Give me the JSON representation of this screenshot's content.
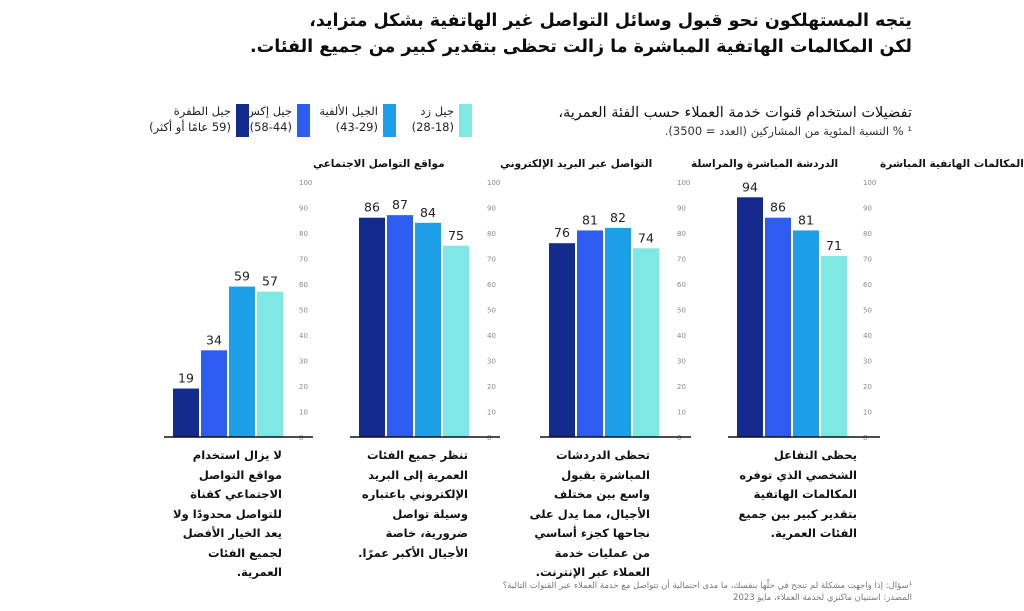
{
  "headline": {
    "line1": "يتجه المستهلكون نحو قبول وسائل التواصل غير الهاتفية بشكل متزايد،",
    "line2": "لكن المكالمات الهاتفية المباشرة ما زالت تحظى بتقدير كبير من جميع الفئات."
  },
  "subtitle": {
    "title": "تفضيلات استخدام قنوات خدمة العملاء حسب الفئة العمرية،",
    "note": "¹ % النسبة المئوية من المشاركين (العدد = 3500)."
  },
  "legend": [
    {
      "name": "جيل زد",
      "range": "(28-18)",
      "color": "#7ee8e4"
    },
    {
      "name": "الجيل الألفية",
      "range": "(43-29)",
      "color": "#1d9fe8"
    },
    {
      "name": "جيل إكس",
      "range": "(58-44)",
      "color": "#2e5cf0"
    },
    {
      "name": "جيل الطفرة",
      "range": "(59 عامًا أو أكثر)",
      "color": "#142a8c"
    }
  ],
  "descriptions": [
    "يحظى التفاعل الشخصي الذي توفره المكالمات الهاتفية بتقدير كبير بين جميع الفئات العمرية.",
    "تحظى الدردشات المباشرة بقبول واسع بين مختلف الأجيال، مما يدل على نجاحها كجزء أساسي من عمليات خدمة العملاء عبر الإنترنت.",
    "تنظر جميع الفئات العمرية إلى البريد الإلكتروني باعتباره وسيلة تواصل ضرورية، خاصة الأجيال الأكبر عمرًا.",
    "لا يزال استخدام مواقع التواصل الاجتماعي كقناة للتواصل محدودًا ولا يعد الخيار الأفضل لجميع الفئات العمرية."
  ],
  "footnotes": {
    "question": "¹سؤال: إذا واجهت مشكلة لم تنجح في حلّها بنفسك، ما مدى احتمالية أن تتواصل مع خدمة العملاء عبر القنوات التالية؟",
    "source": "المصدر: استبيان ماكنزي لخدمة العملاء، مايو 2023"
  },
  "chart_data": {
    "type": "bar",
    "series_names": [
      "جيل الطفرة",
      "جيل إكس",
      "الجيل الألفية",
      "جيل زد"
    ],
    "series_colors": [
      "#142a8c",
      "#2e5cf0",
      "#1d9fe8",
      "#7ee8e4"
    ],
    "ylim": [
      0,
      100
    ],
    "yticks": [
      0,
      10,
      20,
      30,
      40,
      50,
      60,
      70,
      80,
      90,
      100
    ],
    "panels": [
      {
        "title": "المكالمات الهاتفية المباشرة",
        "values": [
          94,
          86,
          81,
          71
        ]
      },
      {
        "title": "الدردشة المباشرة والمراسلة",
        "values": [
          76,
          81,
          82,
          74
        ]
      },
      {
        "title": "التواصل عبر البريد الإلكتروني",
        "values": [
          86,
          87,
          84,
          75
        ]
      },
      {
        "title": "مواقع التواصل الاجتماعي",
        "values": [
          19,
          34,
          59,
          57
        ]
      }
    ]
  }
}
